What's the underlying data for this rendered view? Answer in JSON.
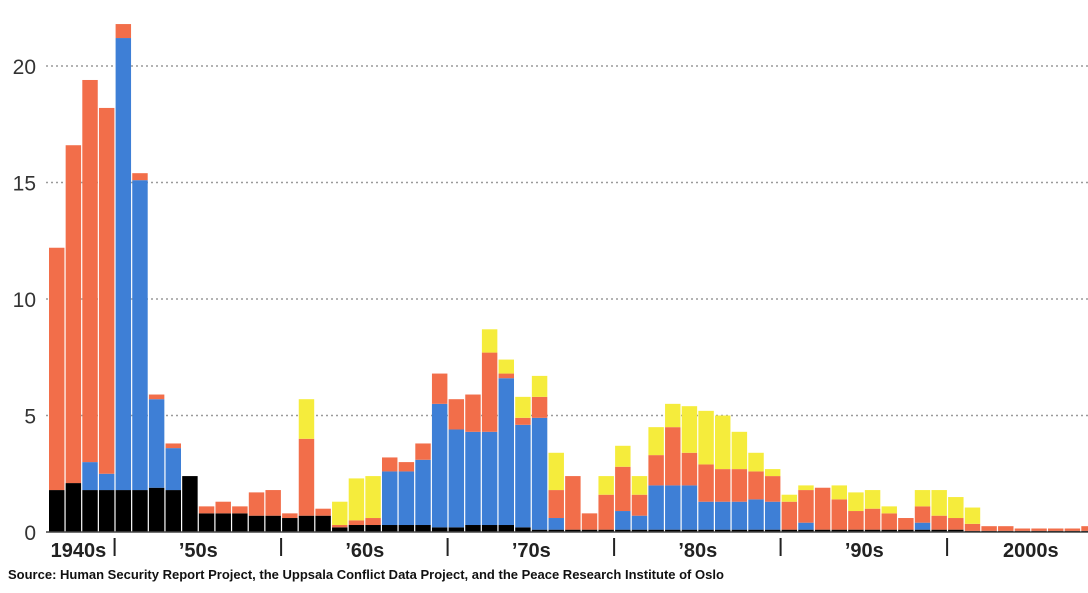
{
  "chart_data": {
    "type": "bar",
    "stacked": true,
    "ylim": [
      0,
      22
    ],
    "yticks": [
      "0",
      "5",
      "10",
      "15",
      "20"
    ],
    "grid": "dotted horizontal",
    "decade_labels": [
      "1940s",
      "’50s",
      "’60s",
      "’70s",
      "’80s",
      "’90s",
      "2000s"
    ],
    "colors": [
      "#000000",
      "#3e7fd6",
      "#f26e4a",
      "#f5ec3c"
    ],
    "x": [
      1946,
      1947,
      1948,
      1949,
      1950,
      1951,
      1952,
      1953,
      1954,
      1955,
      1956,
      1957,
      1958,
      1959,
      1960,
      1961,
      1962,
      1963,
      1964,
      1965,
      1966,
      1967,
      1968,
      1969,
      1970,
      1971,
      1972,
      1973,
      1974,
      1975,
      1976,
      1977,
      1978,
      1979,
      1980,
      1981,
      1982,
      1983,
      1984,
      1985,
      1986,
      1987,
      1988,
      1989,
      1990,
      1991,
      1992,
      1993,
      1994,
      1995,
      1996,
      1997,
      1998,
      1999,
      2000,
      2001,
      2002,
      2003,
      2004,
      2005,
      2006,
      2007,
      2008
    ],
    "series": [
      {
        "values": [
          1.8,
          2.1,
          1.8,
          1.8,
          1.8,
          1.8,
          1.9,
          1.8,
          2.4,
          0.8,
          0.8,
          0.8,
          0.7,
          0.7,
          0.6,
          0.7,
          0.7,
          0.2,
          0.3,
          0.3,
          0.3,
          0.3,
          0.3,
          0.2,
          0.2,
          0.3,
          0.3,
          0.3,
          0.2,
          0.1,
          0.1,
          0.1,
          0.1,
          0.1,
          0.1,
          0.1,
          0.1,
          0.1,
          0.1,
          0.1,
          0.1,
          0.1,
          0.1,
          0.1,
          0.1,
          0.1,
          0.1,
          0.1,
          0.1,
          0.1,
          0.1,
          0.1,
          0.1,
          0.1,
          0.1,
          0.05,
          0.05,
          0.05,
          0.05,
          0.05,
          0.05,
          0.05,
          0.05
        ]
      },
      {
        "values": [
          0,
          0,
          1.2,
          0.7,
          19.4,
          13.3,
          3.8,
          1.8,
          0,
          0,
          0,
          0,
          0,
          0,
          0,
          0,
          0,
          0,
          0,
          0,
          2.3,
          2.3,
          2.8,
          5.3,
          4.2,
          4.0,
          4.0,
          6.3,
          4.4,
          4.8,
          0.5,
          0,
          0,
          0,
          0.8,
          0.6,
          1.9,
          1.9,
          1.9,
          1.2,
          1.2,
          1.2,
          1.3,
          1.2,
          0,
          0.3,
          0,
          0,
          0,
          0,
          0,
          0,
          0.3,
          0,
          0,
          0,
          0,
          0,
          0,
          0,
          0,
          0,
          0
        ]
      },
      {
        "values": [
          10.4,
          14.5,
          16.4,
          15.7,
          0.6,
          0.3,
          0.2,
          0.2,
          0,
          0.3,
          0.5,
          0.3,
          1.0,
          1.1,
          0.2,
          3.3,
          0.3,
          0.1,
          0.2,
          0.3,
          0.6,
          0.4,
          0.7,
          1.3,
          1.3,
          1.6,
          3.4,
          0.2,
          0.3,
          0.9,
          1.2,
          2.3,
          0.7,
          1.5,
          1.9,
          0.9,
          1.3,
          2.5,
          1.4,
          1.6,
          1.4,
          1.4,
          1.2,
          1.1,
          1.2,
          1.4,
          1.8,
          1.3,
          0.8,
          0.9,
          0.7,
          0.5,
          0.7,
          0.6,
          0.5,
          0.3,
          0.2,
          0.2,
          0.1,
          0.1,
          0.1,
          0.1,
          0.2
        ]
      },
      {
        "values": [
          0,
          0,
          0,
          0,
          0,
          0,
          0,
          0,
          0,
          0,
          0,
          0,
          0,
          0,
          0,
          1.7,
          0,
          1.0,
          1.8,
          1.8,
          0,
          0,
          0,
          0,
          0,
          0,
          1.0,
          0.6,
          0.9,
          0.9,
          1.6,
          0,
          0,
          0.8,
          0.9,
          0.8,
          1.2,
          1.0,
          2.0,
          2.3,
          2.3,
          1.6,
          0.8,
          0.3,
          0.3,
          0.2,
          0,
          0.6,
          0.8,
          0.8,
          0.3,
          0,
          0.7,
          1.1,
          0.9,
          0.7,
          0,
          0,
          0,
          0,
          0,
          0,
          0
        ]
      }
    ]
  },
  "source": "Source: Human Security Report Project, the Uppsala Conflict Data Project, and the Peace Research Institute of Oslo"
}
